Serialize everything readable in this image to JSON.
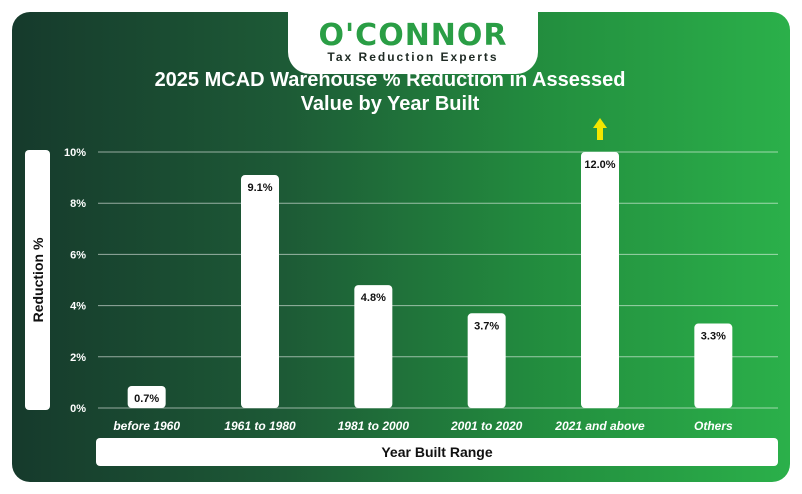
{
  "logo": {
    "brand": "O'CONNOR",
    "tagline": "Tax Reduction Experts"
  },
  "chart_data": {
    "type": "bar",
    "title": "2025 MCAD Warehouse % Reduction in Assessed Value by Year Built",
    "title_lines": [
      "2025 MCAD Warehouse % Reduction in Assessed",
      "Value by Year Built"
    ],
    "xlabel": "Year Built Range",
    "ylabel": "Reduction %",
    "categories": [
      "before 1960",
      "1961 to 1980",
      "1981 to 2000",
      "2001 to 2020",
      "2021 and above",
      "Others"
    ],
    "values": [
      0.7,
      9.1,
      4.8,
      3.7,
      12.0,
      3.3
    ],
    "value_labels": [
      "0.7%",
      "9.1%",
      "4.8%",
      "3.7%",
      "12.0%",
      "3.3%"
    ],
    "ylim": [
      0,
      10
    ],
    "yticks": [
      0,
      2,
      4,
      6,
      8,
      10
    ],
    "ytick_labels": [
      "0%",
      "2%",
      "4%",
      "6%",
      "8%",
      "10%"
    ],
    "grid": true,
    "overflow_marker": "up-arrow on 2021 and above",
    "colors": {
      "bar": "#ffffff",
      "arrow": "#f2e600",
      "gradient_start": "#163a2c",
      "gradient_end": "#2bb04a",
      "brand_green": "#2a9e45"
    }
  }
}
